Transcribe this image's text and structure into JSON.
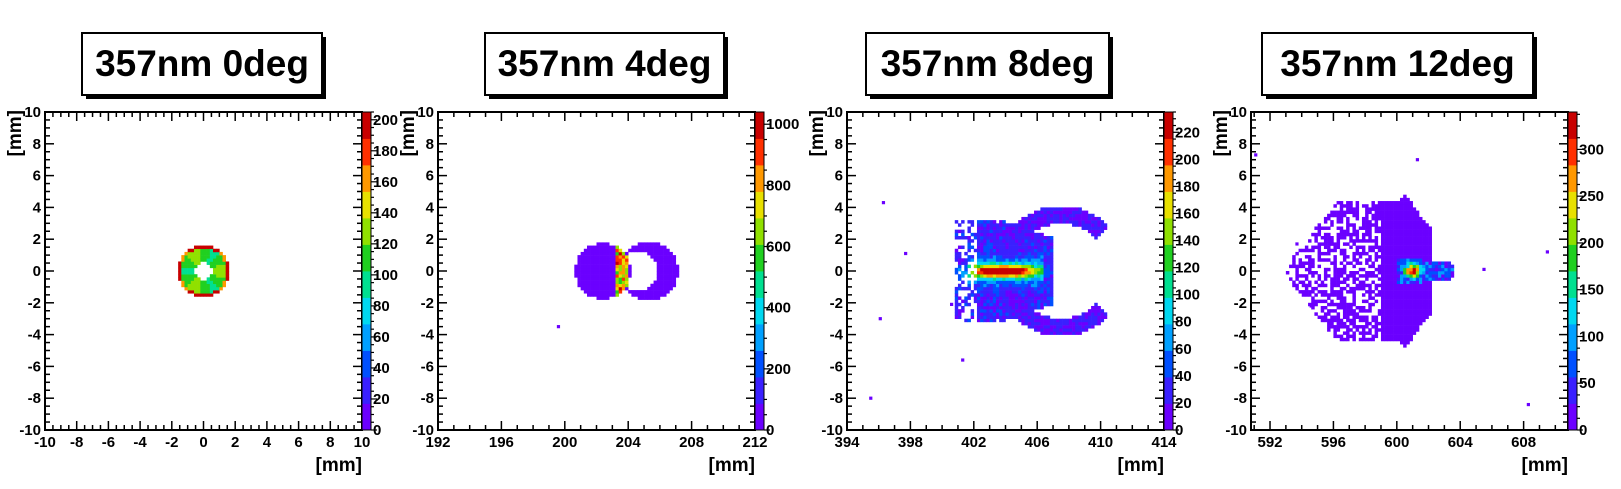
{
  "panel_titles": [
    "357nm 0deg",
    "357nm 4deg",
    "357nm 8deg",
    "357nm 12deg"
  ],
  "colors": {
    "palette": [
      "#6b00ff",
      "#3a20ff",
      "#0050ff",
      "#00a0ff",
      "#00d8f0",
      "#00e090",
      "#20d020",
      "#90e000",
      "#e8e000",
      "#ff9800",
      "#ff3000",
      "#c80000"
    ],
    "frame": "#000000",
    "background": "#ffffff"
  },
  "chart_data": [
    {
      "type": "heatmap",
      "title": "357nm 0deg",
      "xlabel": "[mm]",
      "ylabel": "[mm]",
      "xlim": [
        -10,
        10
      ],
      "ylim": [
        -10,
        10
      ],
      "xticks": [
        -10,
        -8,
        -6,
        -4,
        -2,
        0,
        2,
        4,
        6,
        8,
        10
      ],
      "yticks": [
        -10,
        -8,
        -6,
        -4,
        -2,
        0,
        2,
        4,
        6,
        8,
        10
      ],
      "zlim": [
        0,
        205
      ],
      "zticks": [
        0,
        20,
        40,
        60,
        80,
        100,
        120,
        140,
        160,
        180,
        200
      ],
      "spot": "ring centered at (0, 0), outer radius 1.6 mm, inner radius 0.6 mm, values about 100-120 with peaks near 200 at edges"
    },
    {
      "type": "heatmap",
      "title": "357nm 4deg",
      "xlabel": "[mm]",
      "ylabel": "[mm]",
      "xlim": [
        192,
        212
      ],
      "ylim": [
        -10,
        10
      ],
      "xticks": [
        192,
        196,
        200,
        204,
        208,
        212
      ],
      "yticks": [
        -10,
        -8,
        -6,
        -4,
        -2,
        0,
        2,
        4,
        6,
        8,
        10
      ],
      "zlim": [
        0,
        1040
      ],
      "zticks": [
        0,
        200,
        400,
        600,
        800,
        1000
      ],
      "spot": "two lobes centered near (202.4, 0) and (205.2, 0), radius about 1.8 mm, bright line near x = 203.5"
    },
    {
      "type": "heatmap",
      "title": "357nm 8deg",
      "xlabel": "[mm]",
      "ylabel": "[mm]",
      "xlim": [
        394,
        414
      ],
      "ylim": [
        -10,
        10
      ],
      "xticks": [
        394,
        398,
        402,
        406,
        410,
        414
      ],
      "yticks": [
        -10,
        -8,
        -6,
        -4,
        -2,
        0,
        2,
        4,
        6,
        8,
        10
      ],
      "zlim": [
        0,
        235
      ],
      "zticks": [
        0,
        20,
        40,
        60,
        80,
        100,
        120,
        140,
        160,
        180,
        200,
        220
      ],
      "spot": "C-shaped ring centered near (407.5, 0) plus lobe near (403.5, 0), peak about 230 at (403.5, 0)"
    },
    {
      "type": "heatmap",
      "title": "357nm 12deg",
      "xlabel": "[mm]",
      "ylabel": "[mm]",
      "xlim": [
        590.8,
        610.8
      ],
      "ylim": [
        -10,
        10
      ],
      "xticks": [
        592,
        596,
        600,
        604,
        608
      ],
      "yticks": [
        -10,
        -8,
        -6,
        -4,
        -2,
        0,
        2,
        4,
        6,
        8,
        10
      ],
      "zlim": [
        0,
        340
      ],
      "zticks": [
        0,
        50,
        100,
        150,
        200,
        250,
        300
      ],
      "spot": "sparse fan spanning x 593-601 and y -4.5 to 4.5, dense tail to x 603.5, peak about 330 near (601, 0)"
    }
  ]
}
